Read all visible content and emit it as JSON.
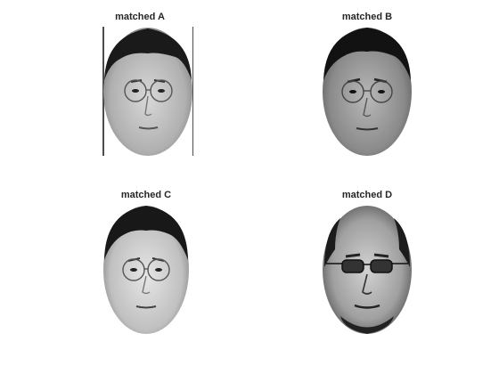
{
  "panels": [
    {
      "title": "matched A"
    },
    {
      "title": "matched B"
    },
    {
      "title": "matched C"
    },
    {
      "title": "matched D"
    }
  ],
  "colors": {
    "background": "#ffffff",
    "title": "#262626"
  }
}
